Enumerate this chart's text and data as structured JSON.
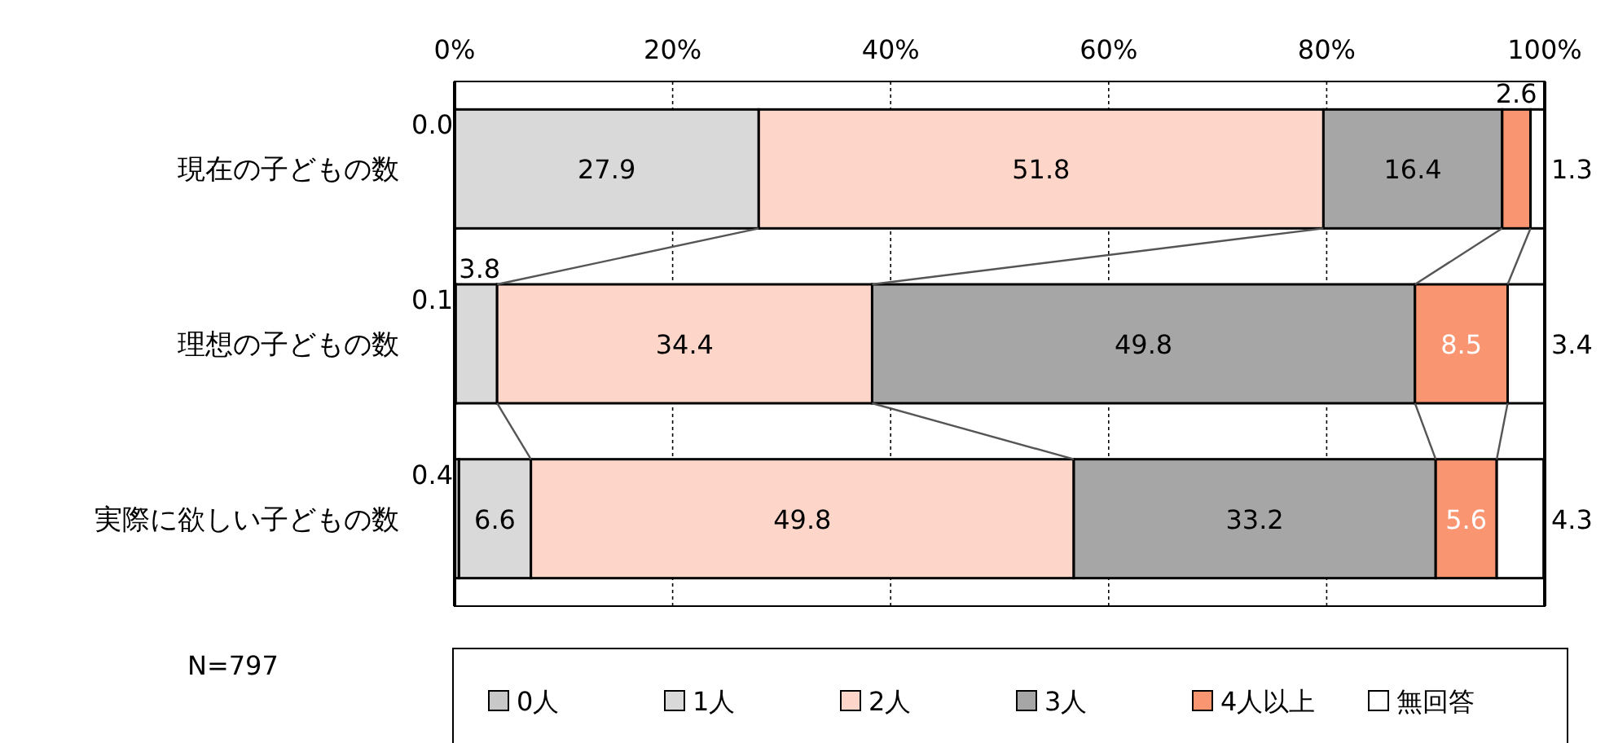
{
  "chart_data": {
    "type": "bar",
    "orientation": "horizontal",
    "stacked": true,
    "categories": [
      "現在の子どもの数",
      "理想の子どもの数",
      "実際に欲しい子どもの数"
    ],
    "series": [
      {
        "name": "0人",
        "color": "#c8c8c8",
        "values": [
          0.0,
          0.1,
          0.4
        ],
        "value_labels": [
          "0.0",
          "0.1",
          "0.4"
        ]
      },
      {
        "name": "1人",
        "color": "#d9d9d9",
        "values": [
          27.9,
          3.8,
          6.6
        ],
        "value_labels": [
          "27.9",
          "3.8",
          "6.6"
        ]
      },
      {
        "name": "2人",
        "color": "#fdd5c9",
        "values": [
          51.8,
          34.4,
          49.8
        ],
        "value_labels": [
          "51.8",
          "34.4",
          "49.8"
        ]
      },
      {
        "name": "3人",
        "color": "#a6a6a6",
        "values": [
          16.4,
          49.8,
          33.2
        ],
        "value_labels": [
          "16.4",
          "49.8",
          "33.2"
        ]
      },
      {
        "name": "4人以上",
        "color": "#fa9572",
        "values": [
          2.6,
          8.5,
          5.6
        ],
        "value_labels": [
          "2.6",
          "8.5",
          "5.6"
        ]
      },
      {
        "name": "無回答",
        "color": "#ffffff",
        "values": [
          1.3,
          3.4,
          4.3
        ],
        "value_labels": [
          "1.3",
          "3.4",
          "4.3"
        ]
      }
    ],
    "xlim": [
      0,
      100
    ],
    "xticks": [
      {
        "value": 0,
        "label": "0%"
      },
      {
        "value": 20,
        "label": "20%"
      },
      {
        "value": 40,
        "label": "40%"
      },
      {
        "value": 60,
        "label": "60%"
      },
      {
        "value": 80,
        "label": "80%"
      },
      {
        "value": 100,
        "label": "100%"
      }
    ],
    "grid": "x",
    "legend": "bottom",
    "annotations": [
      "N=797"
    ]
  }
}
